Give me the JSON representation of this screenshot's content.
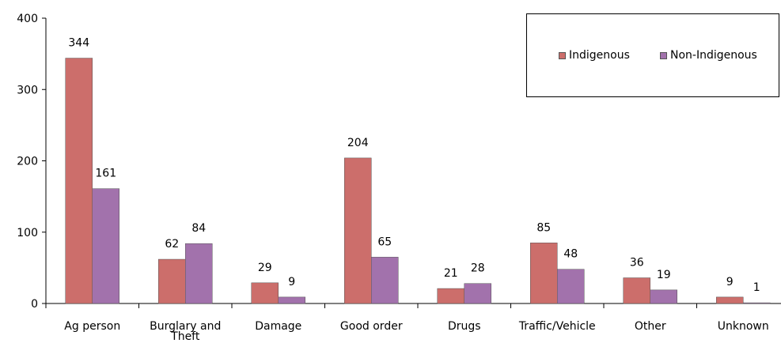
{
  "chart_data": {
    "type": "bar",
    "categories": [
      "Ag person",
      "Burglary and Theft",
      "Damage",
      "Good order",
      "Drugs",
      "Traffic/Vehicle",
      "Other",
      "Unknown"
    ],
    "category_lines": [
      [
        "Ag person"
      ],
      [
        "Burglary and",
        "Theft"
      ],
      [
        "Damage"
      ],
      [
        "Good order"
      ],
      [
        "Drugs"
      ],
      [
        "Traffic/Vehicle"
      ],
      [
        "Other"
      ],
      [
        "Unknown"
      ]
    ],
    "series": [
      {
        "name": "Indigenous",
        "values": [
          344,
          62,
          29,
          204,
          21,
          85,
          36,
          9
        ],
        "color": "#cc6e6b"
      },
      {
        "name": "Non-Indigenous",
        "values": [
          161,
          84,
          9,
          65,
          28,
          48,
          19,
          1
        ],
        "color": "#a272ac"
      }
    ],
    "yticks": [
      0,
      100,
      200,
      300,
      400
    ],
    "ylim": [
      0,
      400
    ],
    "grid": false,
    "legend_position": "top-right"
  }
}
